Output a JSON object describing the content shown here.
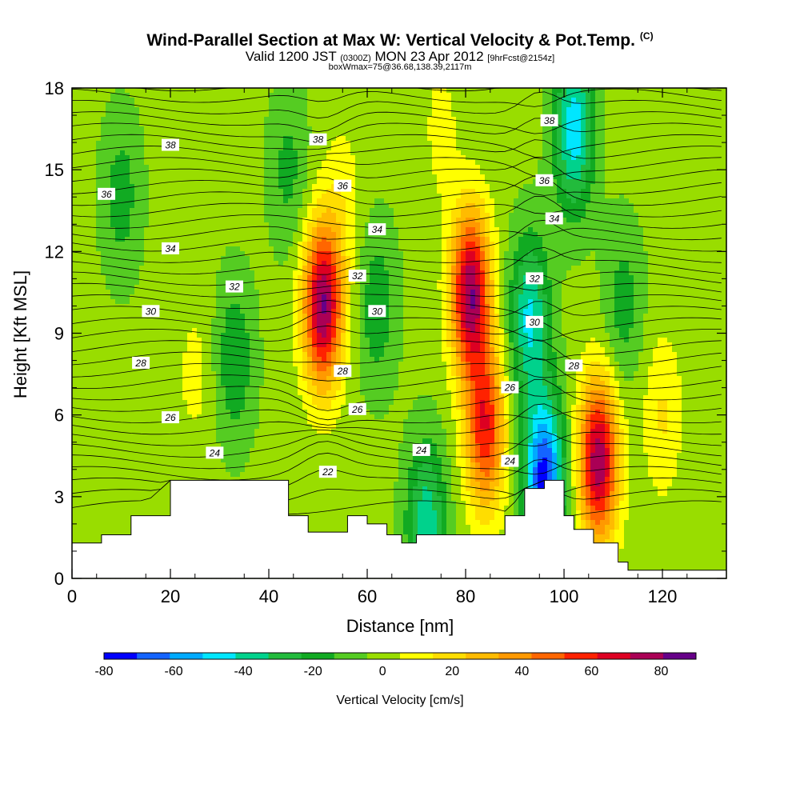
{
  "header": {
    "title": "Wind-Parallel Section at Max W: Vertical Velocity & Pot.Temp.",
    "copyright": "(C)",
    "valid_prefix": "Valid 1200 JST",
    "valid_zulu": "(0300Z)",
    "valid_date": "MON 23 Apr 2012",
    "forecast": "[9hrFcst@2154z]",
    "boxinfo": "boxWmax=75@36.68,138.39,2117m"
  },
  "chart_data": {
    "type": "heatmap",
    "xlabel": "Distance [nm]",
    "ylabel": "Height [Kft MSL]",
    "xlim": [
      0,
      133
    ],
    "ylim": [
      0,
      18
    ],
    "xticks": [
      0,
      20,
      40,
      60,
      80,
      100,
      120
    ],
    "yticks": [
      0,
      3,
      6,
      9,
      12,
      15,
      18
    ],
    "colorbar": {
      "label": "Vertical Velocity [cm/s]",
      "tick_labels": [
        "-80",
        "-60",
        "-40",
        "-20",
        "0",
        "20",
        "40",
        "60",
        "80"
      ],
      "tick_values": [
        -80,
        -60,
        -40,
        -20,
        0,
        20,
        40,
        60,
        80
      ],
      "bounds": [
        -80,
        90
      ],
      "step": 10,
      "colors": [
        "#0000ff",
        "#1464ff",
        "#00aaff",
        "#00e6ff",
        "#00d28c",
        "#22bb3c",
        "#11aa22",
        "#55cc22",
        "#99dd00",
        "#ffff00",
        "#ffdd00",
        "#ffbb00",
        "#ff9900",
        "#ff6600",
        "#ff2200",
        "#dd0022",
        "#aa0055",
        "#660088"
      ]
    },
    "terrain": [
      [
        0,
        1.3
      ],
      [
        6,
        1.6
      ],
      [
        12,
        2.3
      ],
      [
        20,
        3.6
      ],
      [
        40,
        3.6
      ],
      [
        44,
        2.3
      ],
      [
        48,
        1.7
      ],
      [
        56,
        2.3
      ],
      [
        60,
        2.0
      ],
      [
        64,
        1.6
      ],
      [
        67,
        1.3
      ],
      [
        70,
        1.6
      ],
      [
        82,
        1.6
      ],
      [
        88,
        2.3
      ],
      [
        92,
        3.3
      ],
      [
        96,
        3.6
      ],
      [
        100,
        2.3
      ],
      [
        102,
        1.8
      ],
      [
        106,
        1.3
      ],
      [
        111,
        0.6
      ],
      [
        113,
        0.3
      ],
      [
        133,
        0.3
      ]
    ],
    "updrafts": [
      {
        "x": 51,
        "z": 10.0,
        "peak": 88
      },
      {
        "x": 81,
        "z": 10.5,
        "peak": 86
      },
      {
        "x": 84,
        "z": 5.5,
        "peak": 65
      },
      {
        "x": 107,
        "z": 4.3,
        "peak": 85
      },
      {
        "x": 55,
        "z": 14.0,
        "peak": 12
      },
      {
        "x": 25,
        "z": 7.5,
        "peak": 10
      },
      {
        "x": 120,
        "z": 6.0,
        "peak": 18
      },
      {
        "x": 75,
        "z": 16.5,
        "peak": 10
      }
    ],
    "downdrafts": [
      {
        "x": 96,
        "z": 3.6,
        "peak": -78
      },
      {
        "x": 93,
        "z": 9.5,
        "peak": -45
      },
      {
        "x": 102,
        "z": 16.5,
        "peak": -50
      },
      {
        "x": 72,
        "z": 2.0,
        "peak": -40
      },
      {
        "x": 33,
        "z": 8.0,
        "peak": -22
      },
      {
        "x": 10,
        "z": 14.0,
        "peak": -18
      },
      {
        "x": 62,
        "z": 10.0,
        "peak": -20
      },
      {
        "x": 112,
        "z": 10.0,
        "peak": -18
      },
      {
        "x": 44,
        "z": 15.0,
        "peak": -16
      }
    ],
    "theta_contours": [
      {
        "value": 22,
        "label": "22",
        "lx": 52,
        "lz": 3.9,
        "shown": true
      },
      {
        "value": 24,
        "label": "24",
        "lx": 29,
        "lz": 4.6,
        "shown": true
      },
      {
        "value": 26,
        "label": "26",
        "lx": 20,
        "lz": 5.9,
        "shown": true
      },
      {
        "value": 28,
        "label": "28",
        "lx": 14,
        "lz": 7.9,
        "shown": true
      },
      {
        "value": 30,
        "label": "30",
        "lx": 16,
        "lz": 9.8,
        "shown": true
      },
      {
        "value": 32,
        "label": "32",
        "lx": 33,
        "lz": 10.7,
        "shown": true
      },
      {
        "value": 34,
        "label": "34",
        "lx": 20,
        "lz": 12.1,
        "shown": true
      },
      {
        "value": 36,
        "label": "36",
        "lx": 7,
        "lz": 14.1,
        "shown": true
      },
      {
        "value": 38,
        "label": "38",
        "lx": 20,
        "lz": 15.9,
        "shown": true
      }
    ],
    "contour_labels": [
      {
        "label": "38",
        "x": 50,
        "z": 16.1
      },
      {
        "label": "36",
        "x": 55,
        "z": 14.4
      },
      {
        "label": "34",
        "x": 62,
        "z": 12.8
      },
      {
        "label": "32",
        "x": 58,
        "z": 11.1
      },
      {
        "label": "30",
        "x": 62,
        "z": 9.8
      },
      {
        "label": "28",
        "x": 55,
        "z": 7.6
      },
      {
        "label": "26",
        "x": 58,
        "z": 6.2
      },
      {
        "label": "24",
        "x": 71,
        "z": 4.7
      },
      {
        "label": "26",
        "x": 89,
        "z": 7.0
      },
      {
        "label": "24",
        "x": 89,
        "z": 4.3
      },
      {
        "label": "28",
        "x": 102,
        "z": 7.8
      },
      {
        "label": "30",
        "x": 94,
        "z": 9.4
      },
      {
        "label": "32",
        "x": 94,
        "z": 11.0
      },
      {
        "label": "34",
        "x": 98,
        "z": 13.2
      },
      {
        "label": "36",
        "x": 96,
        "z": 14.6
      },
      {
        "label": "38",
        "x": 97,
        "z": 16.8
      }
    ]
  }
}
